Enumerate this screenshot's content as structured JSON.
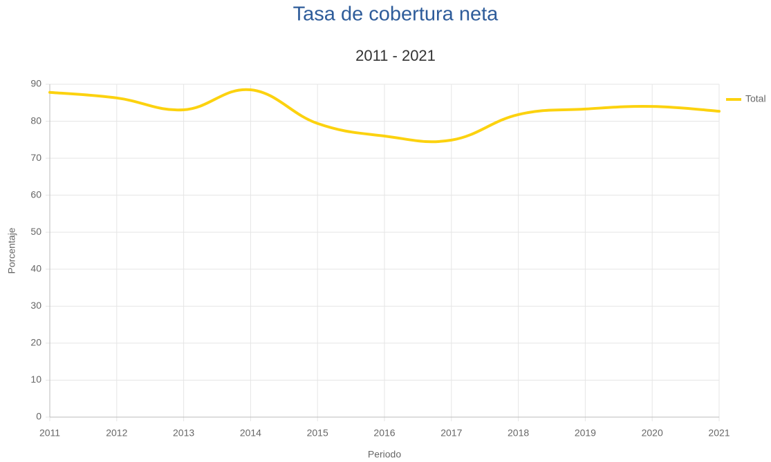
{
  "chart_data": {
    "type": "line",
    "title": "Tasa de cobertura neta",
    "subtitle": "2011 - 2021",
    "x_label": "Periodo",
    "y_label": "Porcentaje",
    "categories": [
      "2011",
      "2012",
      "2013",
      "2014",
      "2015",
      "2016",
      "2017",
      "2018",
      "2019",
      "2020",
      "2021"
    ],
    "series": [
      {
        "name": "Total",
        "color": "#fcd20f",
        "values": [
          87.8,
          86.3,
          83.1,
          88.5,
          79.4,
          76.0,
          74.9,
          81.8,
          83.3,
          84.0,
          82.7
        ]
      }
    ],
    "ylim": [
      0,
      90
    ],
    "yticks": [
      0,
      10,
      20,
      30,
      40,
      50,
      60,
      70,
      80,
      90
    ],
    "grid": true,
    "smooth": true,
    "legend": "right"
  }
}
